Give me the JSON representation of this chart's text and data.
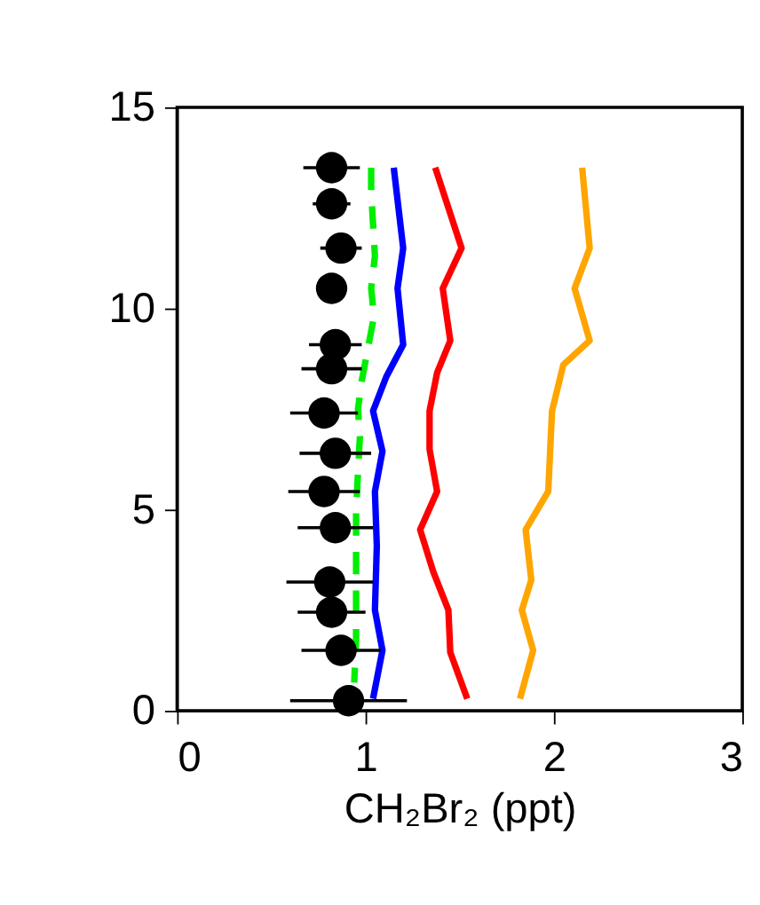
{
  "chart_data": {
    "type": "line",
    "xlabel": "CH₂Br₂ (ppt)",
    "xlim": [
      0,
      3
    ],
    "xticks": [
      0,
      1,
      2,
      3
    ],
    "ylim": [
      0,
      15
    ],
    "yticks": [
      0,
      5,
      10,
      15
    ],
    "grid": false,
    "series": [
      {
        "color": "#ffa500",
        "x": [
          2.15,
          2.19,
          2.11,
          2.19,
          2.05,
          1.99,
          1.97,
          1.85,
          1.88,
          1.83,
          1.89,
          1.82
        ],
        "values": [
          13.5,
          11.5,
          10.5,
          9.2,
          8.6,
          7.45,
          5.45,
          4.5,
          3.25,
          2.5,
          1.5,
          0.3
        ]
      },
      {
        "color": "#ff0000",
        "x": [
          1.37,
          1.51,
          1.41,
          1.45,
          1.38,
          1.34,
          1.34,
          1.38,
          1.29,
          1.36,
          1.44,
          1.45,
          1.54
        ],
        "values": [
          13.5,
          11.5,
          10.5,
          9.2,
          8.4,
          7.45,
          6.5,
          5.45,
          4.5,
          3.45,
          2.5,
          1.45,
          0.3
        ]
      },
      {
        "color": "#0000ff",
        "x": [
          1.15,
          1.2,
          1.17,
          1.2,
          1.11,
          1.04,
          1.09,
          1.05,
          1.06,
          1.05,
          1.09,
          1.04
        ],
        "values": [
          13.5,
          11.5,
          10.5,
          9.1,
          8.3,
          7.45,
          6.45,
          5.45,
          4.1,
          2.5,
          1.5,
          0.3
        ]
      },
      {
        "color": "#00ee00",
        "line_style": "dashed",
        "x": [
          1.03,
          1.03,
          1.05,
          1.03,
          1.045,
          0.98,
          0.96,
          0.97,
          0.95,
          0.95,
          0.95,
          0.94
        ],
        "values": [
          13.5,
          12.9,
          11.3,
          10.5,
          9.8,
          8.2,
          7.5,
          6.8,
          5.0,
          3.5,
          1.75,
          0.7
        ]
      },
      {
        "type": "scatter",
        "color": "#000000",
        "marker": "circle",
        "x": [
          0.82,
          0.82,
          0.87,
          0.82,
          0.84,
          0.82,
          0.78,
          0.84,
          0.78,
          0.84,
          0.81,
          0.82,
          0.87,
          0.91
        ],
        "values": [
          13.5,
          12.6,
          11.5,
          10.5,
          9.1,
          8.5,
          7.4,
          6.4,
          5.45,
          4.55,
          3.2,
          2.45,
          1.5,
          0.25
        ],
        "xerrors": [
          0.15,
          0.1,
          0.11,
          null,
          0.14,
          0.16,
          0.18,
          0.19,
          0.19,
          0.2,
          0.23,
          0.18,
          0.21,
          0.31
        ]
      }
    ]
  }
}
